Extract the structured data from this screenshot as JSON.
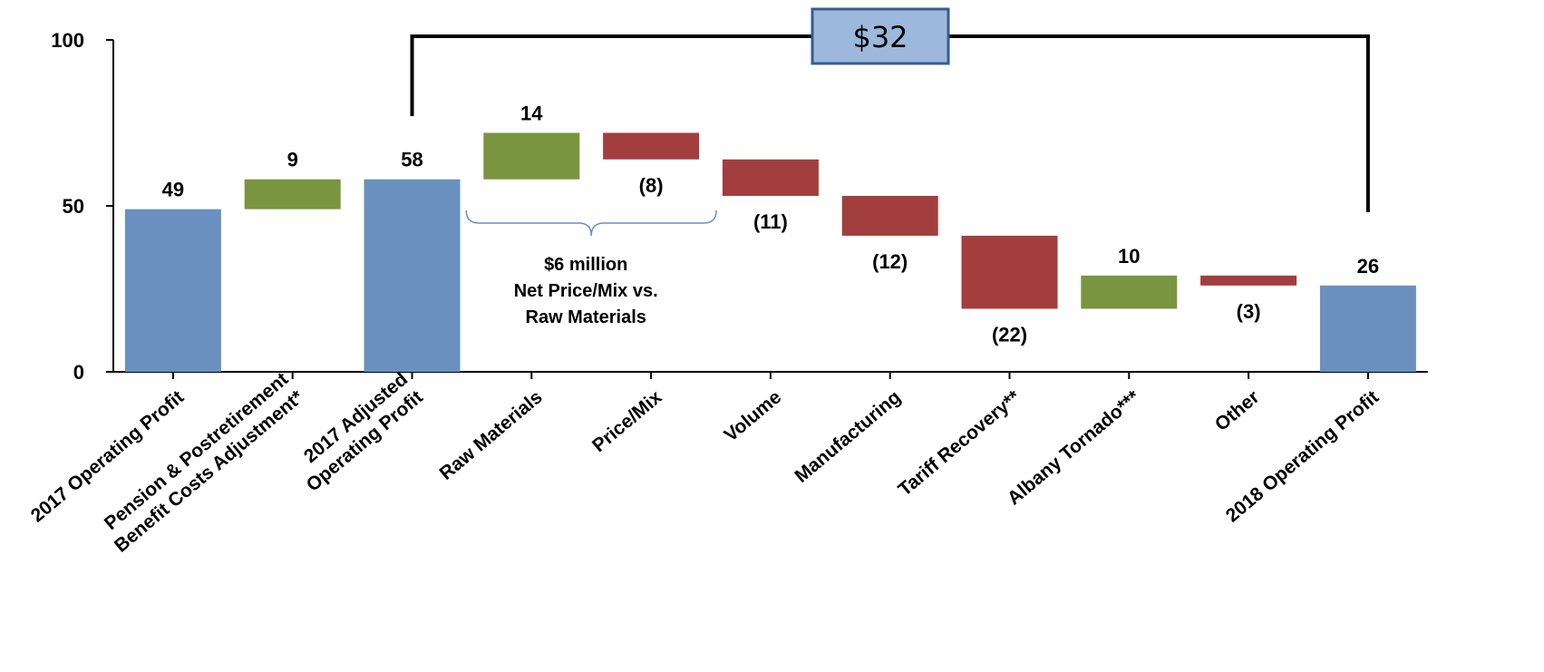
{
  "chart_data": {
    "type": "waterfall",
    "ylim": [
      0,
      100
    ],
    "y_ticks": [
      0,
      50,
      100
    ],
    "categories": [
      {
        "label_lines": [
          "2017 Operating Profit"
        ],
        "kind": "total",
        "value": 49,
        "display": "49"
      },
      {
        "label_lines": [
          "Pension & Postretirement",
          "Benefit Costs Adjustment*"
        ],
        "kind": "increase",
        "value": 9,
        "display": "9"
      },
      {
        "label_lines": [
          "2017 Adjusted",
          "Operating Profit"
        ],
        "kind": "total",
        "value": 58,
        "display": "58"
      },
      {
        "label_lines": [
          "Raw Materials"
        ],
        "kind": "increase",
        "value": 14,
        "display": "14"
      },
      {
        "label_lines": [
          "Price/Mix"
        ],
        "kind": "decrease",
        "value": -8,
        "display": "(8)"
      },
      {
        "label_lines": [
          "Volume"
        ],
        "kind": "decrease",
        "value": -11,
        "display": "(11)"
      },
      {
        "label_lines": [
          "Manufacturing"
        ],
        "kind": "decrease",
        "value": -12,
        "display": "(12)"
      },
      {
        "label_lines": [
          "Tariff Recovery**"
        ],
        "kind": "decrease",
        "value": -22,
        "display": "(22)"
      },
      {
        "label_lines": [
          "Albany Tornado***"
        ],
        "kind": "increase",
        "value": 10,
        "display": "10"
      },
      {
        "label_lines": [
          "Other"
        ],
        "kind": "decrease",
        "value": -3,
        "display": "(3)"
      },
      {
        "label_lines": [
          "2018 Operating Profit"
        ],
        "kind": "total",
        "value": 26,
        "display": "26"
      }
    ],
    "annotations": {
      "bracket_total": "$32",
      "price_mix_note": [
        "$6 million",
        "Net Price/Mix vs.",
        "Raw Materials"
      ]
    },
    "colors": {
      "total": "#6990bf",
      "increase": "#7a9540",
      "decrease": "#a33e3e",
      "total_box_fill": "#9cb8dc",
      "total_box_stroke": "#385d8a",
      "brace": "#6990bf"
    }
  }
}
